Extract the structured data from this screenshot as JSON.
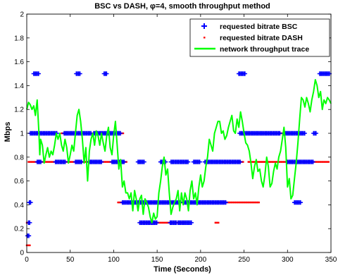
{
  "chart_data": {
    "type": "line",
    "title": "BSC vs DASH, φ=4, smooth throughput method",
    "xlabel": "Time (Seconds)",
    "ylabel": "Mbps",
    "xlim": [
      0,
      350
    ],
    "ylim": [
      0,
      2
    ],
    "xticks": [
      "0",
      "50",
      "100",
      "150",
      "200",
      "250",
      "300",
      "350"
    ],
    "yticks": [
      "0",
      "0.2",
      "0.4",
      "0.6",
      "0.8",
      "1",
      "1.2",
      "1.4",
      "1.6",
      "1.8",
      "2"
    ],
    "grid": false,
    "legend_position": "top-right",
    "colors": {
      "bsc": "#0000ff",
      "dash": "#ff0000",
      "throughput": "#00ff00"
    },
    "series": [
      {
        "name": "requested bitrate BSC",
        "style": "plus-markers",
        "segments": [
          [
            1,
            3,
            0.14
          ],
          [
            2,
            4,
            0.25
          ],
          [
            3,
            5,
            0.42
          ],
          [
            8,
            14,
            1.5
          ],
          [
            57,
            62,
            1.5
          ],
          [
            89,
            93,
            1.5
          ],
          [
            4,
            13,
            1.0
          ],
          [
            15,
            35,
            1.0
          ],
          [
            43,
            75,
            1.0
          ],
          [
            77,
            108,
            1.0
          ],
          [
            12,
            17,
            0.76
          ],
          [
            33,
            45,
            0.76
          ],
          [
            56,
            63,
            0.76
          ],
          [
            72,
            87,
            0.76
          ],
          [
            98,
            112,
            0.76
          ],
          [
            110,
            176,
            0.42
          ],
          [
            180,
            230,
            0.42
          ],
          [
            130,
            150,
            0.25
          ],
          [
            165,
            172,
            0.25
          ],
          [
            174,
            190,
            0.25
          ],
          [
            128,
            136,
            0.76
          ],
          [
            154,
            160,
            0.76
          ],
          [
            166,
            186,
            0.76
          ],
          [
            192,
            200,
            0.76
          ],
          [
            205,
            246,
            0.76
          ],
          [
            244,
            252,
            1.5
          ],
          [
            245,
            292,
            1.0
          ],
          [
            296,
            320,
            1.0
          ],
          [
            330,
            334,
            1.0
          ],
          [
            300,
            330,
            0.76
          ],
          [
            308,
            316,
            0.42
          ],
          [
            337,
            349,
            1.5
          ]
        ]
      },
      {
        "name": "requested bitrate DASH",
        "style": "dot-markers",
        "segments": [
          [
            0,
            4,
            0.06
          ],
          [
            0,
            3,
            0.25
          ],
          [
            5,
            30,
            1.0
          ],
          [
            40,
            60,
            1.0
          ],
          [
            75,
            112,
            1.0
          ],
          [
            2,
            115,
            0.76
          ],
          [
            105,
            170,
            0.42
          ],
          [
            170,
            268,
            0.42
          ],
          [
            217,
            221,
            0.25
          ],
          [
            130,
            182,
            0.25
          ],
          [
            225,
            250,
            0.76
          ],
          [
            255,
            348,
            0.76
          ],
          [
            248,
            305,
            1.0
          ]
        ]
      },
      {
        "name": "network throughput trace",
        "style": "line",
        "x": [
          0,
          2,
          4,
          6,
          8,
          10,
          12,
          14,
          15,
          16,
          18,
          20,
          22,
          24,
          26,
          28,
          30,
          32,
          34,
          36,
          38,
          40,
          42,
          44,
          46,
          48,
          50,
          52,
          54,
          56,
          58,
          60,
          62,
          64,
          66,
          68,
          70,
          72,
          74,
          76,
          78,
          80,
          82,
          84,
          86,
          88,
          90,
          92,
          94,
          96,
          98,
          100,
          102,
          104,
          106,
          108,
          110,
          112,
          114,
          116,
          118,
          120,
          122,
          124,
          126,
          128,
          130,
          132,
          134,
          136,
          138,
          140,
          142,
          144,
          146,
          148,
          150,
          152,
          154,
          156,
          158,
          160,
          162,
          164,
          166,
          168,
          170,
          172,
          174,
          176,
          178,
          180,
          182,
          184,
          186,
          188,
          190,
          192,
          194,
          196,
          198,
          200,
          202,
          204,
          206,
          208,
          210,
          212,
          214,
          216,
          218,
          220,
          222,
          224,
          226,
          228,
          230,
          232,
          234,
          236,
          238,
          240,
          242,
          244,
          246,
          248,
          250,
          252,
          254,
          256,
          258,
          260,
          262,
          264,
          266,
          268,
          270,
          272,
          274,
          276,
          278,
          280,
          282,
          284,
          286,
          288,
          290,
          292,
          294,
          296,
          298,
          300,
          302,
          304,
          306,
          308,
          310,
          312,
          314,
          316,
          318,
          320,
          322,
          324,
          326,
          328,
          330,
          332,
          334,
          336,
          338,
          340,
          342,
          344,
          346,
          348,
          350
        ],
        "y": [
          1.2,
          1.26,
          1.24,
          1.2,
          1.23,
          1.15,
          1.28,
          1.0,
          0.82,
          0.95,
          0.9,
          0.75,
          0.82,
          0.88,
          0.8,
          0.85,
          0.82,
          0.9,
          1.0,
          0.95,
          1.0,
          0.9,
          0.85,
          0.95,
          0.88,
          0.75,
          0.82,
          0.9,
          0.85,
          1.0,
          1.15,
          1.2,
          1.1,
          0.95,
          0.75,
          0.88,
          0.6,
          0.85,
          0.95,
          1.0,
          0.9,
          1.02,
          0.98,
          0.9,
          1.0,
          0.92,
          0.85,
          0.98,
          1.05,
          0.88,
          0.82,
          0.98,
          1.1,
          0.9,
          0.7,
          0.78,
          0.55,
          0.6,
          0.5,
          0.5,
          0.45,
          0.5,
          0.35,
          0.52,
          0.45,
          0.35,
          0.45,
          0.48,
          0.32,
          0.45,
          0.42,
          0.38,
          0.3,
          0.25,
          0.33,
          0.28,
          0.3,
          0.5,
          0.6,
          0.72,
          0.8,
          0.65,
          0.7,
          0.5,
          0.32,
          0.38,
          0.42,
          0.45,
          0.52,
          0.35,
          0.5,
          0.4,
          0.5,
          0.45,
          0.35,
          0.52,
          0.6,
          0.45,
          0.5,
          0.4,
          0.55,
          0.65,
          0.55,
          0.6,
          0.72,
          0.8,
          0.95,
          0.9,
          0.85,
          1.0,
          1.05,
          1.1,
          1.1,
          1.0,
          1.02,
          0.95,
          0.98,
          1.05,
          1.1,
          1.15,
          1.02,
          1.0,
          1.12,
          1.05,
          1.18,
          1.1,
          1.0,
          0.92,
          0.9,
          0.85,
          0.75,
          0.62,
          0.72,
          0.78,
          0.68,
          0.7,
          0.6,
          0.55,
          0.65,
          0.8,
          0.72,
          0.55,
          0.58,
          0.68,
          0.75,
          0.7,
          0.8,
          0.85,
          0.95,
          1.05,
          0.88,
          0.55,
          0.62,
          0.45,
          0.48,
          0.62,
          0.75,
          0.92,
          1.12,
          1.3,
          1.28,
          1.22,
          1.3,
          1.25,
          1.18,
          1.28,
          1.35,
          1.45,
          1.4,
          1.3,
          1.35,
          1.2,
          1.28,
          1.25,
          1.3,
          1.28,
          1.25
        ]
      }
    ]
  }
}
